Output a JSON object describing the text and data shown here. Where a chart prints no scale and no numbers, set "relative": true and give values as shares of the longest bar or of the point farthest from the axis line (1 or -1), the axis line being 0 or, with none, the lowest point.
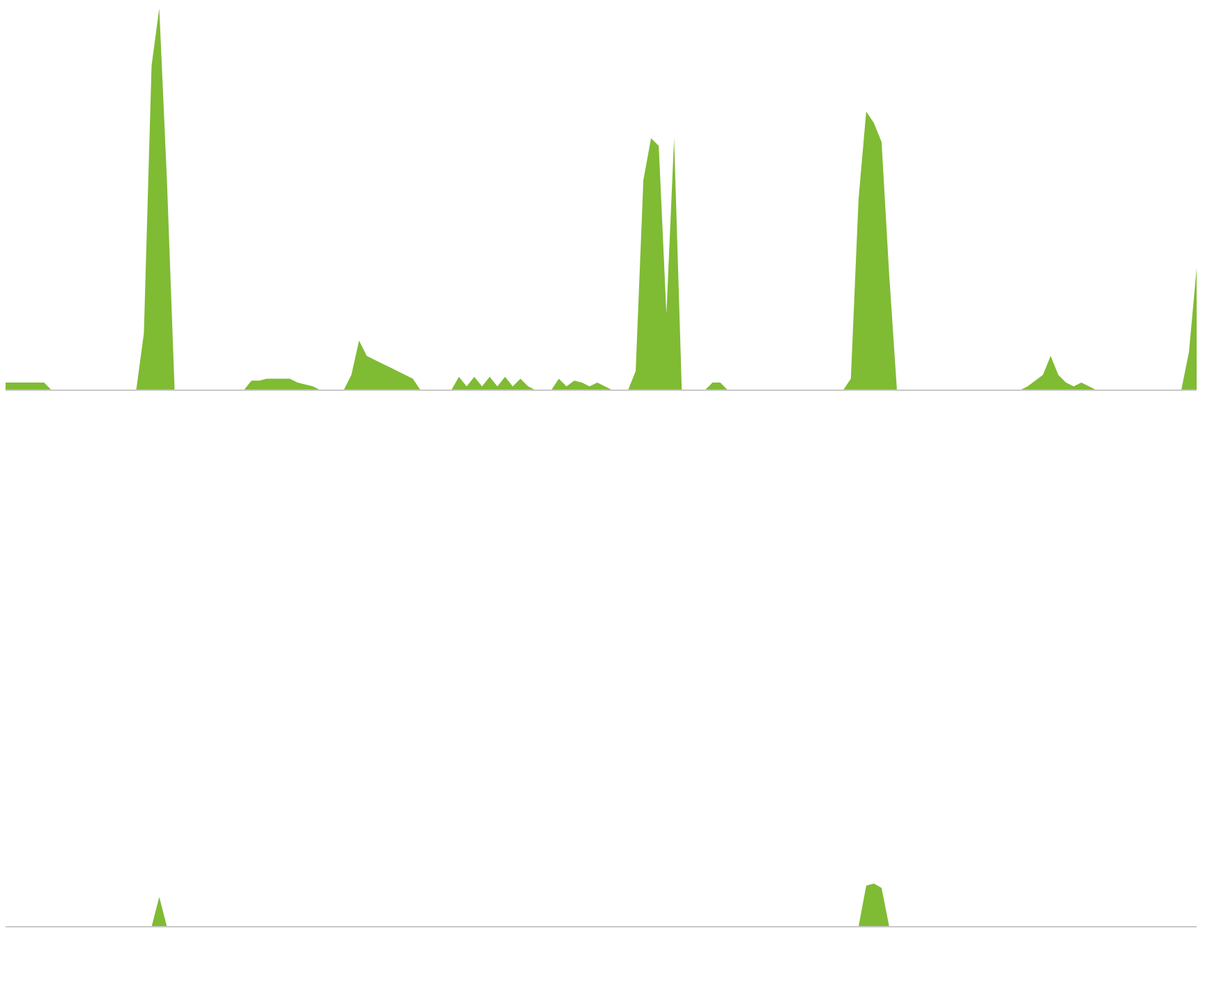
{
  "chart_data": [
    {
      "type": "area",
      "relative": true,
      "color": "#80bb34",
      "tick_labels": false,
      "categories": [
        null,
        null,
        null,
        null,
        null,
        null,
        null,
        null,
        null,
        null,
        null,
        null,
        null,
        null,
        null,
        null,
        null,
        null,
        null,
        null,
        null,
        null,
        null,
        null,
        null,
        null,
        null,
        null,
        null,
        null,
        null,
        null,
        null,
        null,
        null,
        null,
        null,
        null,
        null,
        null,
        null,
        null,
        null,
        null,
        null,
        null,
        null,
        null,
        null,
        null,
        null,
        null,
        null,
        null,
        null,
        null,
        null,
        null,
        null,
        null,
        null,
        null,
        null,
        null,
        null,
        null,
        null,
        null,
        null,
        null,
        null,
        null,
        null,
        null,
        null,
        null,
        null,
        null,
        null,
        null,
        null,
        null,
        null,
        null,
        null,
        null,
        null,
        null,
        null,
        null,
        null,
        null,
        null,
        null,
        null,
        null,
        null,
        null,
        null,
        null,
        null,
        null,
        null,
        null,
        null,
        null,
        null,
        null,
        null,
        null,
        null,
        null,
        null,
        null,
        null,
        null,
        null,
        null,
        null,
        null,
        null,
        null,
        null,
        null,
        null,
        null,
        null,
        null,
        null,
        null,
        null,
        null,
        null,
        null,
        null,
        null,
        null,
        null,
        null,
        null,
        null,
        null,
        null,
        null,
        null,
        null,
        null,
        null,
        null,
        null,
        null,
        null,
        null,
        null,
        null,
        null
      ],
      "values": [
        0.02,
        0.02,
        0.02,
        0.02,
        0.02,
        0.02,
        0,
        0,
        0,
        0,
        0,
        0,
        0,
        0,
        0,
        0,
        0,
        0,
        0.15,
        0.85,
        1,
        0.55,
        0,
        0,
        0,
        0,
        0,
        0,
        0,
        0,
        0,
        0,
        0.025,
        0.025,
        0.03,
        0.03,
        0.03,
        0.03,
        0.02,
        0.015,
        0.01,
        0,
        0,
        0,
        0,
        0.04,
        0.13,
        0.09,
        0.08,
        0.07,
        0.06,
        0.05,
        0.04,
        0.03,
        0,
        0,
        0,
        0,
        0,
        0.035,
        0.01,
        0.035,
        0.01,
        0.035,
        0.01,
        0.035,
        0.01,
        0.03,
        0.01,
        0,
        0,
        0,
        0.03,
        0.01,
        0.025,
        0.02,
        0.01,
        0.02,
        0.01,
        0,
        0,
        0,
        0.05,
        0.55,
        0.66,
        0.64,
        0.2,
        0.66,
        0,
        0,
        0,
        0,
        0.02,
        0.02,
        0,
        0,
        0,
        0,
        0,
        0,
        0,
        0,
        0,
        0,
        0,
        0,
        0,
        0,
        0,
        0,
        0.03,
        0.5,
        0.73,
        0.7,
        0.65,
        0.3,
        0,
        0,
        0,
        0,
        0,
        0,
        0,
        0,
        0,
        0,
        0,
        0,
        0,
        0,
        0,
        0,
        0,
        0.01,
        0.025,
        0.04,
        0.09,
        0.04,
        0.02,
        0.01,
        0.02,
        0.01,
        0,
        0,
        0,
        0,
        0,
        0,
        0,
        0,
        0,
        0,
        0,
        0,
        0.1,
        0.32
      ]
    },
    {
      "type": "area",
      "relative": true,
      "color": "#80bb34",
      "tick_labels": false,
      "categories": [
        null,
        null,
        null,
        null,
        null,
        null,
        null,
        null,
        null,
        null,
        null,
        null,
        null,
        null,
        null,
        null,
        null,
        null,
        null,
        null,
        null,
        null,
        null,
        null,
        null,
        null,
        null,
        null,
        null,
        null,
        null,
        null,
        null,
        null,
        null,
        null,
        null,
        null,
        null,
        null,
        null,
        null,
        null,
        null,
        null,
        null,
        null,
        null,
        null,
        null,
        null,
        null,
        null,
        null,
        null,
        null,
        null,
        null,
        null,
        null,
        null,
        null,
        null,
        null,
        null,
        null,
        null,
        null,
        null,
        null,
        null,
        null,
        null,
        null,
        null,
        null,
        null,
        null,
        null,
        null,
        null,
        null,
        null,
        null,
        null,
        null,
        null,
        null,
        null,
        null,
        null,
        null,
        null,
        null,
        null,
        null,
        null,
        null,
        null,
        null,
        null,
        null,
        null,
        null,
        null,
        null,
        null,
        null,
        null,
        null,
        null,
        null,
        null,
        null,
        null,
        null,
        null,
        null,
        null,
        null,
        null,
        null,
        null,
        null,
        null,
        null,
        null,
        null,
        null,
        null,
        null,
        null,
        null,
        null,
        null,
        null,
        null,
        null,
        null,
        null,
        null,
        null,
        null,
        null,
        null,
        null,
        null,
        null,
        null,
        null,
        null,
        null,
        null,
        null,
        null,
        null
      ],
      "values": [
        0,
        0,
        0,
        0,
        0,
        0,
        0,
        0,
        0,
        0,
        0,
        0,
        0,
        0,
        0,
        0,
        0,
        0,
        0,
        0,
        0.69,
        0,
        0,
        0,
        0,
        0,
        0,
        0,
        0,
        0,
        0,
        0,
        0,
        0,
        0,
        0,
        0,
        0,
        0,
        0,
        0,
        0,
        0,
        0,
        0,
        0,
        0,
        0,
        0,
        0,
        0,
        0,
        0,
        0,
        0,
        0,
        0,
        0,
        0,
        0,
        0,
        0,
        0,
        0,
        0,
        0,
        0,
        0,
        0,
        0,
        0,
        0,
        0,
        0,
        0,
        0,
        0,
        0,
        0,
        0,
        0,
        0,
        0,
        0,
        0,
        0,
        0,
        0,
        0,
        0,
        0,
        0,
        0,
        0,
        0,
        0,
        0,
        0,
        0,
        0,
        0,
        0,
        0,
        0,
        0,
        0,
        0,
        0,
        0,
        0,
        0,
        0,
        0.95,
        1,
        0.9,
        0,
        0,
        0,
        0,
        0,
        0,
        0,
        0,
        0,
        0,
        0,
        0,
        0,
        0,
        0,
        0,
        0,
        0,
        0,
        0,
        0,
        0,
        0,
        0,
        0,
        0,
        0,
        0,
        0,
        0,
        0,
        0,
        0,
        0,
        0,
        0,
        0,
        0,
        0,
        0,
        0
      ]
    }
  ]
}
